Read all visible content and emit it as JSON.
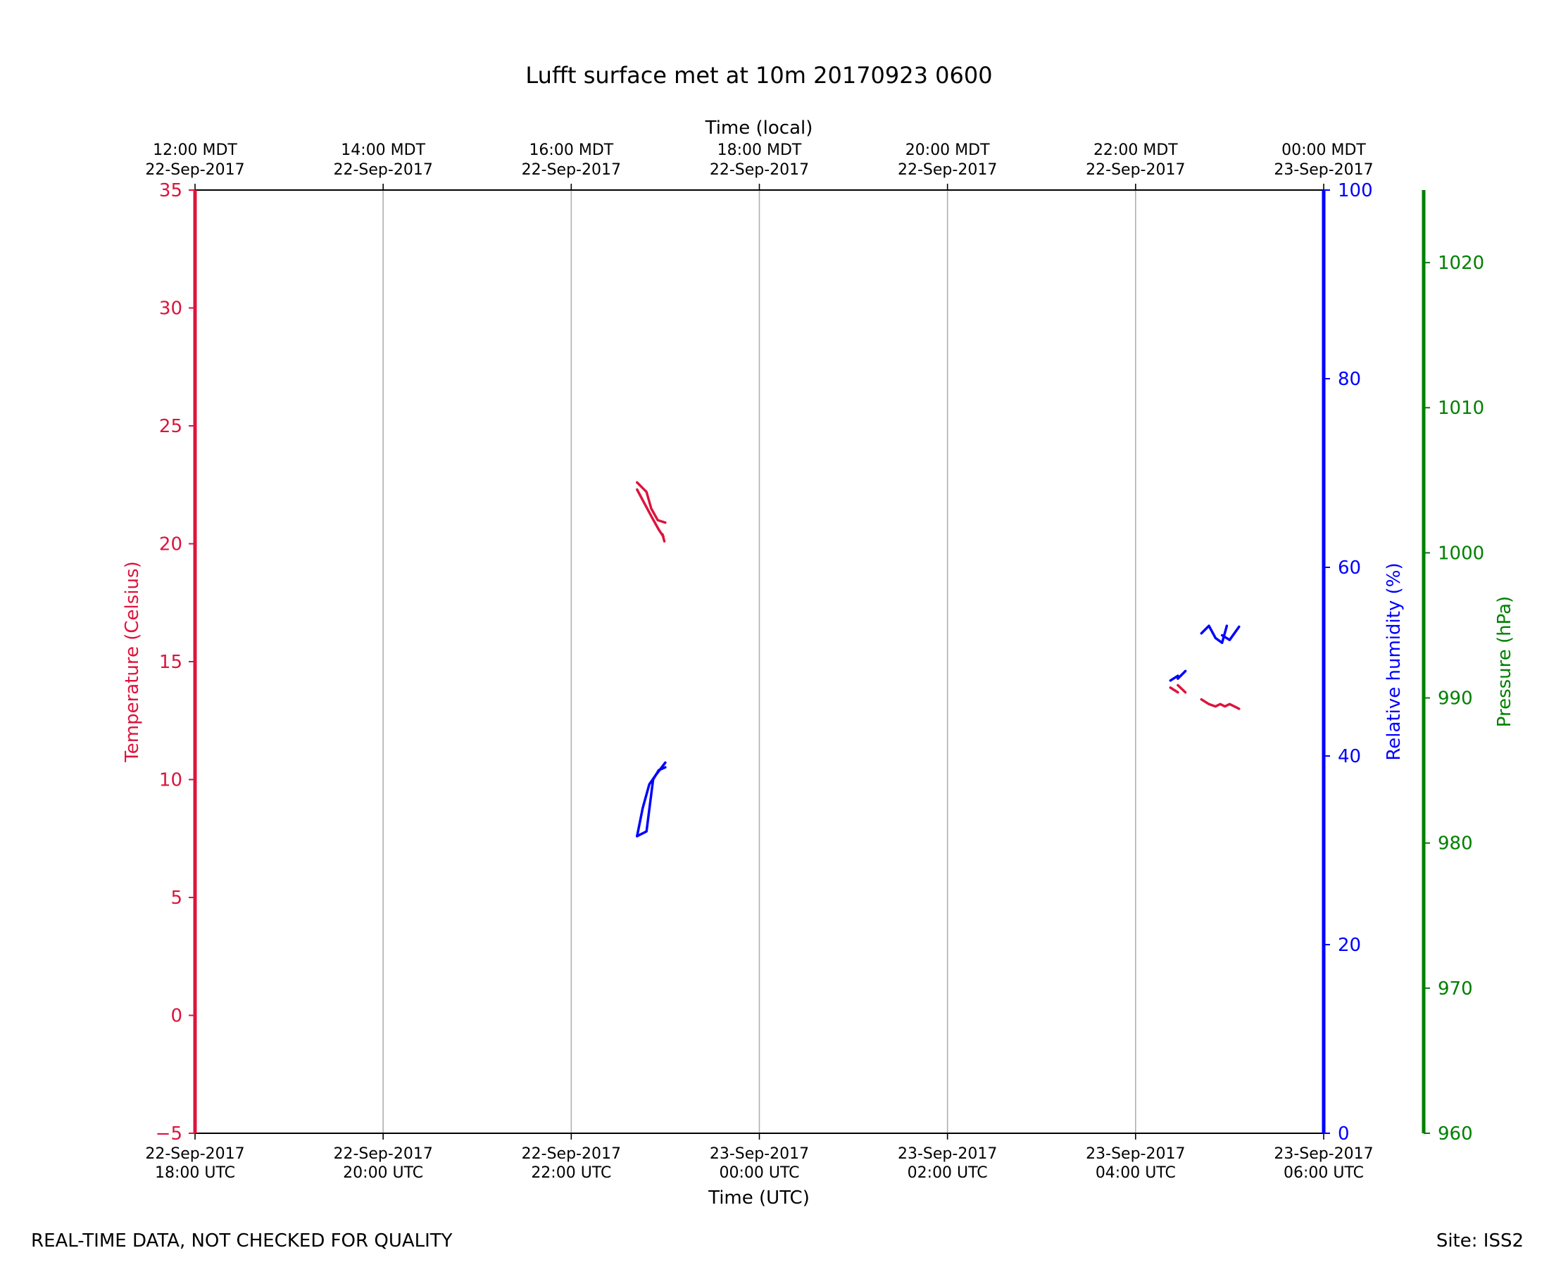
{
  "chart_data": {
    "type": "line",
    "title": "Lufft surface met at 10m 20170923 0600",
    "top_axis_label": "Time (local)",
    "bottom_axis_label": "Time (UTC)",
    "x_range_hours": [
      0,
      12
    ],
    "x_ticks_hours": [
      0,
      2,
      4,
      6,
      8,
      10,
      12
    ],
    "x_tick_labels_utc": [
      [
        "22-Sep-2017",
        "18:00 UTC"
      ],
      [
        "22-Sep-2017",
        "20:00 UTC"
      ],
      [
        "22-Sep-2017",
        "22:00 UTC"
      ],
      [
        "23-Sep-2017",
        "00:00 UTC"
      ],
      [
        "23-Sep-2017",
        "02:00 UTC"
      ],
      [
        "23-Sep-2017",
        "04:00 UTC"
      ],
      [
        "23-Sep-2017",
        "06:00 UTC"
      ]
    ],
    "x_tick_labels_local": [
      [
        "12:00 MDT",
        "22-Sep-2017"
      ],
      [
        "14:00 MDT",
        "22-Sep-2017"
      ],
      [
        "16:00 MDT",
        "22-Sep-2017"
      ],
      [
        "18:00 MDT",
        "22-Sep-2017"
      ],
      [
        "20:00 MDT",
        "22-Sep-2017"
      ],
      [
        "22:00 MDT",
        "22-Sep-2017"
      ],
      [
        "00:00 MDT",
        "23-Sep-2017"
      ]
    ],
    "grid": "vertical",
    "axes": {
      "temperature": {
        "label": "Temperature (Celsius)",
        "side": "left",
        "color": "#dc143c",
        "range": [
          -5,
          35
        ],
        "ticks": [
          -5,
          0,
          5,
          10,
          15,
          20,
          25,
          30,
          35
        ],
        "tick_labels": [
          "−5",
          "0",
          "5",
          "10",
          "15",
          "20",
          "25",
          "30",
          "35"
        ]
      },
      "humidity": {
        "label": "Relative humidity (%)",
        "side": "right",
        "color": "#0000ff",
        "range": [
          0,
          100
        ],
        "ticks": [
          0,
          20,
          40,
          60,
          80,
          100
        ],
        "tick_labels": [
          "0",
          "20",
          "40",
          "60",
          "80",
          "100"
        ]
      },
      "pressure": {
        "label": "Pressure (hPa)",
        "side": "right-outer",
        "color": "#008000",
        "range": [
          960,
          1025
        ],
        "ticks": [
          960,
          970,
          980,
          990,
          1000,
          1010,
          1020
        ],
        "tick_labels": [
          "960",
          "970",
          "980",
          "990",
          "1000",
          "1010",
          "1020"
        ]
      }
    },
    "series": [
      {
        "name": "Temperature",
        "axis": "temperature",
        "color": "#dc143c",
        "segments": [
          [
            [
              4.7,
              22.6
            ],
            [
              4.8,
              22.2
            ],
            [
              4.85,
              21.5
            ],
            [
              4.92,
              21.0
            ],
            [
              5.0,
              20.9
            ]
          ],
          [
            [
              4.7,
              22.3
            ],
            [
              4.78,
              21.7
            ],
            [
              4.86,
              21.1
            ],
            [
              4.93,
              20.6
            ],
            [
              4.98,
              20.3
            ],
            [
              4.97,
              20.4
            ],
            [
              4.99,
              20.1
            ]
          ],
          [
            [
              10.37,
              13.9
            ],
            [
              10.45,
              13.7
            ]
          ],
          [
            [
              10.45,
              14.0
            ],
            [
              10.53,
              13.7
            ]
          ],
          [
            [
              10.7,
              13.4
            ],
            [
              10.78,
              13.2
            ],
            [
              10.85,
              13.1
            ],
            [
              10.9,
              13.2
            ],
            [
              10.95,
              13.1
            ],
            [
              11.0,
              13.2
            ],
            [
              11.05,
              13.1
            ],
            [
              11.1,
              13.0
            ]
          ]
        ]
      },
      {
        "name": "Relative humidity",
        "axis": "humidity",
        "color": "#0000ff",
        "segments": [
          [
            [
              4.7,
              31.5
            ],
            [
              4.8,
              32.0
            ],
            [
              4.87,
              37.5
            ],
            [
              4.93,
              38.5
            ],
            [
              5.0,
              38.8
            ]
          ],
          [
            [
              4.7,
              31.5
            ],
            [
              4.76,
              34.5
            ],
            [
              4.83,
              37.0
            ],
            [
              4.9,
              38.0
            ],
            [
              5.0,
              39.3
            ]
          ],
          [
            [
              10.37,
              48.0
            ],
            [
              10.45,
              48.5
            ]
          ],
          [
            [
              10.45,
              48.2
            ],
            [
              10.53,
              49.0
            ]
          ],
          [
            [
              10.7,
              53.0
            ],
            [
              10.78,
              53.8
            ],
            [
              10.85,
              52.5
            ],
            [
              10.92,
              52.0
            ],
            [
              10.97,
              53.8
            ]
          ],
          [
            [
              10.92,
              52.8
            ],
            [
              11.0,
              52.3
            ],
            [
              11.1,
              53.7
            ]
          ]
        ]
      }
    ]
  },
  "footer": {
    "left_note": "REAL-TIME DATA, NOT CHECKED FOR QUALITY",
    "right_note": "Site: ISS2"
  }
}
